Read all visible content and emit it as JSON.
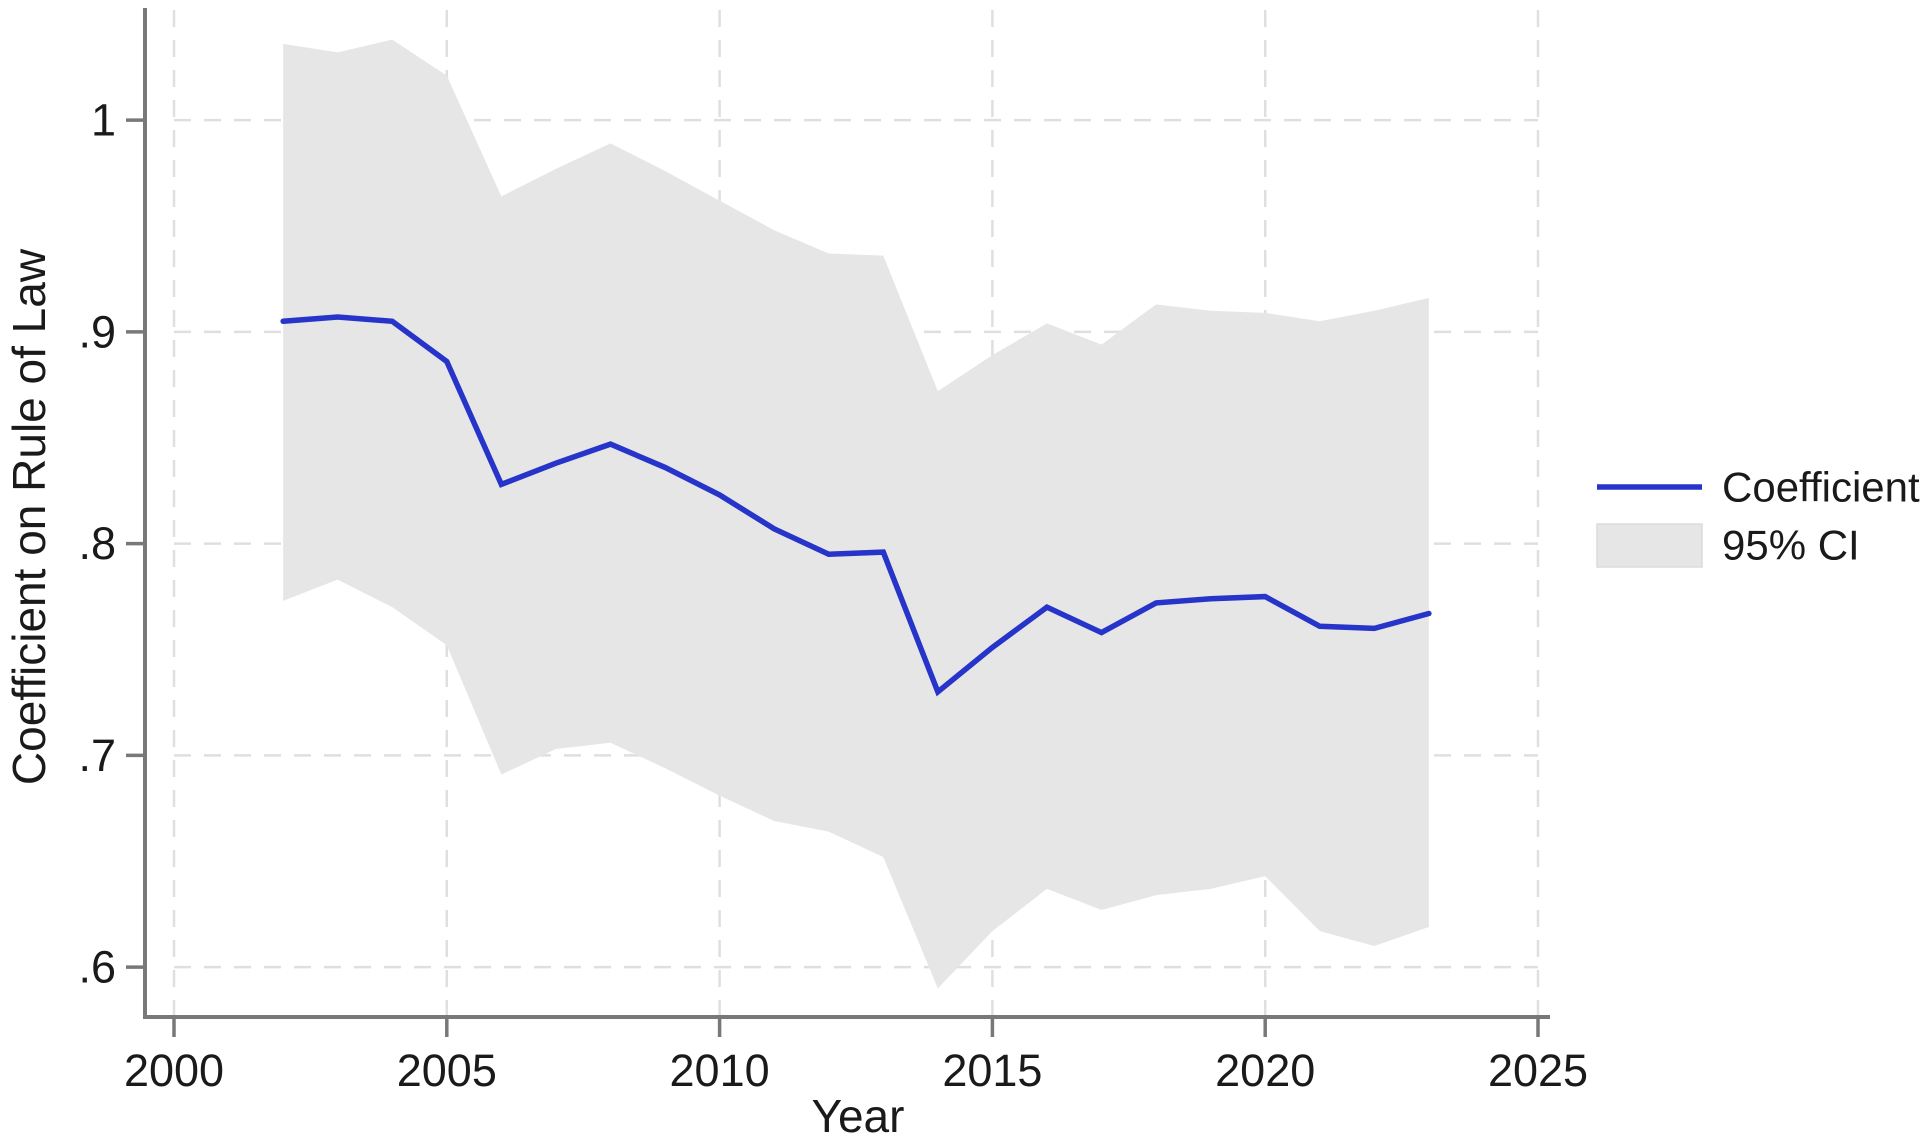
{
  "chart_data": {
    "type": "line",
    "title": "",
    "xlabel": "Year",
    "ylabel": "Coefficient on Rule of Law",
    "x": [
      2002,
      2003,
      2004,
      2005,
      2006,
      2007,
      2008,
      2009,
      2010,
      2011,
      2012,
      2013,
      2014,
      2015,
      2016,
      2017,
      2018,
      2019,
      2020,
      2021,
      2022,
      2023
    ],
    "series": [
      {
        "name": "Coefficient",
        "role": "line",
        "values": [
          0.905,
          0.907,
          0.905,
          0.886,
          0.828,
          0.838,
          0.847,
          0.836,
          0.823,
          0.807,
          0.795,
          0.796,
          0.73,
          0.751,
          0.77,
          0.758,
          0.772,
          0.774,
          0.775,
          0.761,
          0.76,
          0.767
        ]
      },
      {
        "name": "95% CI upper",
        "role": "band-upper",
        "values": [
          1.036,
          1.032,
          1.038,
          1.021,
          0.964,
          0.977,
          0.989,
          0.976,
          0.962,
          0.948,
          0.937,
          0.936,
          0.872,
          0.889,
          0.904,
          0.894,
          0.913,
          0.91,
          0.909,
          0.905,
          0.91,
          0.916
        ]
      },
      {
        "name": "95% CI lower",
        "role": "band-lower",
        "values": [
          0.773,
          0.783,
          0.77,
          0.752,
          0.691,
          0.703,
          0.706,
          0.694,
          0.681,
          0.669,
          0.664,
          0.652,
          0.59,
          0.617,
          0.637,
          0.627,
          0.634,
          0.637,
          0.643,
          0.617,
          0.61,
          0.619
        ]
      }
    ],
    "xlim": [
      2000,
      2025
    ],
    "ylim": [
      0.576,
      1.052
    ],
    "x_ticks": [
      2000,
      2005,
      2010,
      2015,
      2020,
      2025
    ],
    "y_ticks": [
      {
        "value": 1.0,
        "label": "1"
      },
      {
        "value": 0.9,
        "label": ".9"
      },
      {
        "value": 0.8,
        "label": ".8"
      },
      {
        "value": 0.7,
        "label": ".7"
      },
      {
        "value": 0.6,
        "label": ".6"
      }
    ],
    "grid": true,
    "legend_position": "right"
  },
  "legend": {
    "items": [
      {
        "label": "Coefficient",
        "swatch": "line"
      },
      {
        "label": "95% CI",
        "swatch": "area"
      }
    ]
  },
  "style": {
    "line_color": "#2634c9",
    "band_color": "#e6e6e6",
    "band_border": "#dcdcdc",
    "grid_color": "#dfdfdf",
    "axis_color": "#787878",
    "text_color": "#1a1a1a",
    "background": "#ffffff"
  }
}
